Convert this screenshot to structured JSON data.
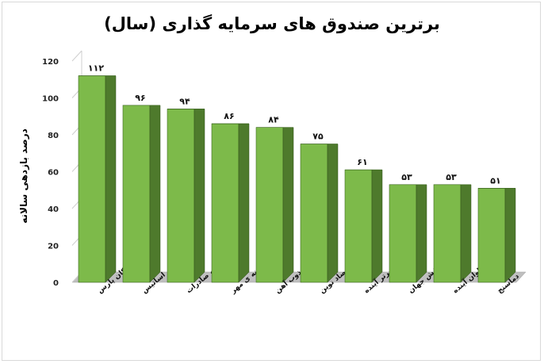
{
  "chart_data": {
    "type": "bar",
    "title": "برترین صندوق های سرمایه گذاری (سال)",
    "xlabel": "",
    "ylabel": "درصد بازدهی سالانه",
    "ylim": [
      0,
      120
    ],
    "yticks": [
      "0",
      "20",
      "40",
      "60",
      "80",
      "100",
      "120"
    ],
    "categories": [
      "نیکان پارس",
      "اساتیس",
      "توسعه صادرات",
      "مشترک گنجینه ی مهر",
      "ذوب آهن",
      "بانک اقتصاد نوین",
      "کارآفرینان برتر آینده",
      "نقش جهان",
      "ارزش کاوان آینده",
      "دماسنج"
    ],
    "values": [
      112,
      96,
      94,
      86,
      84,
      75,
      61,
      53,
      53,
      51
    ],
    "value_labels": [
      "۱۱۲",
      "۹۶",
      "۹۴",
      "۸۶",
      "۸۴",
      "۷۵",
      "۶۱",
      "۵۳",
      "۵۳",
      "۵۱"
    ],
    "grid": false,
    "legend": "none",
    "colors": {
      "bar_front": "#7dba4a",
      "bar_side": "#4e7a2c",
      "bar_top": "#a6d47c",
      "floor": "#bfbfbf"
    }
  }
}
